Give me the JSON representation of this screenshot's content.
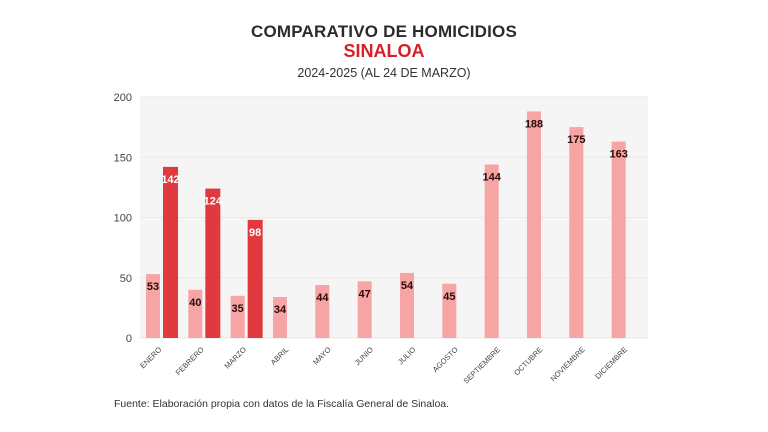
{
  "chart_data": {
    "type": "bar",
    "title": "COMPARATIVO DE HOMICIDIOS",
    "subtitle": "SINALOA",
    "subtitle2": "2024-2025 (AL 24 DE MARZO)",
    "xlabel": "",
    "ylabel": "",
    "ylim": [
      0,
      200
    ],
    "yticks": [
      0,
      50,
      100,
      150,
      200
    ],
    "grid": true,
    "legend": "none",
    "categories": [
      "ENERO",
      "FEBRERO",
      "MARZO",
      "ABRIL",
      "MAYO",
      "JUNIO",
      "JULIO",
      "AGOSTO",
      "SEPTIEMBRE",
      "OCTUBRE",
      "NOVIEMBRE",
      "DICIEMBRE"
    ],
    "series": [
      {
        "name": "2024",
        "color": "#f7a4a4",
        "values": [
          53,
          40,
          35,
          34,
          44,
          47,
          54,
          45,
          144,
          188,
          175,
          163
        ]
      },
      {
        "name": "2025",
        "color": "#e03a3e",
        "values": [
          142,
          124,
          98,
          null,
          null,
          null,
          null,
          null,
          null,
          null,
          null,
          null
        ]
      }
    ]
  },
  "footer": {
    "source": "Fuente: Elaboración propia con datos de la Fiscalía General de Sinaloa."
  }
}
